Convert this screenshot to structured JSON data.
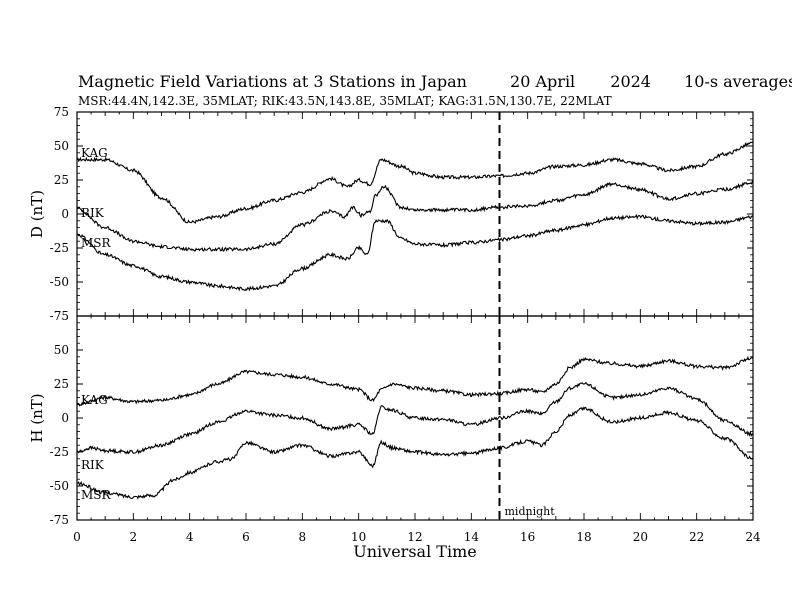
{
  "title": {
    "main": "Magnetic Field Variations at 3 Stations in Japan",
    "date": "20 April",
    "year": "2024",
    "averaging": "10-s averages"
  },
  "subtitle": "MSR:44.4N,142.3E, 35MLAT;  RIK:43.5N,143.8E, 35MLAT;  KAG:31.5N,130.7E, 22MLAT",
  "annotations": {
    "midnight": "midnight"
  },
  "chart_data": [
    {
      "type": "line",
      "panel": "D",
      "ylabel": "D (nT)",
      "xlim": [
        0,
        24
      ],
      "ylim": [
        -75,
        75
      ],
      "yticks": [
        -75,
        -50,
        -25,
        0,
        25,
        50,
        75
      ],
      "xticks": [
        0,
        2,
        4,
        6,
        8,
        10,
        12,
        14,
        16,
        18,
        20,
        22,
        24
      ],
      "vline_x": 15,
      "series": [
        {
          "name": "KAG",
          "x": [
            0,
            1,
            2,
            3,
            4,
            5,
            6,
            7,
            8,
            9,
            9.6,
            10,
            10.4,
            10.8,
            11.5,
            12,
            13,
            14,
            15,
            16,
            17,
            18,
            19,
            20,
            21,
            22,
            23,
            24
          ],
          "y": [
            40,
            40,
            32,
            12,
            -6,
            -2,
            4,
            10,
            16,
            26,
            20,
            25,
            22,
            40,
            35,
            30,
            27,
            27,
            28,
            30,
            35,
            36,
            40,
            37,
            32,
            35,
            44,
            52
          ]
        },
        {
          "name": "RIK",
          "x": [
            0,
            1,
            2,
            3,
            4,
            5,
            6,
            7,
            8,
            9,
            9.5,
            9.8,
            10.1,
            10.4,
            10.6,
            10.9,
            11.5,
            12,
            13,
            14,
            15,
            16,
            17,
            18,
            19,
            20,
            21,
            22,
            23,
            24
          ],
          "y": [
            4,
            -10,
            -20,
            -24,
            -26,
            -26,
            -26,
            -22,
            -8,
            2,
            -2,
            5,
            -1,
            2,
            14,
            20,
            5,
            3,
            3,
            3,
            5,
            6,
            10,
            14,
            22,
            18,
            11,
            15,
            18,
            23
          ]
        },
        {
          "name": "MSR",
          "x": [
            0,
            1,
            2,
            3,
            4,
            5,
            6,
            7,
            8,
            9,
            9.6,
            10,
            10.3,
            10.6,
            11,
            11.5,
            12,
            13,
            14,
            15,
            16,
            17,
            18,
            19,
            20,
            21,
            22,
            23,
            24
          ],
          "y": [
            -15,
            -30,
            -38,
            -46,
            -50,
            -53,
            -55,
            -53,
            -40,
            -30,
            -33,
            -25,
            -30,
            -5,
            -5,
            -18,
            -22,
            -23,
            -21,
            -19,
            -16,
            -12,
            -8,
            -3,
            -2,
            -5,
            -7,
            -6,
            -2
          ]
        }
      ]
    },
    {
      "type": "line",
      "panel": "H",
      "ylabel": "H (nT)",
      "xlabel": "Universal Time",
      "xlim": [
        0,
        24
      ],
      "ylim": [
        -75,
        75
      ],
      "yticks": [
        -75,
        -50,
        -25,
        0,
        25,
        50
      ],
      "xticks": [
        0,
        2,
        4,
        6,
        8,
        10,
        12,
        14,
        16,
        18,
        20,
        22,
        24
      ],
      "vline_x": 15,
      "series": [
        {
          "name": "KAG",
          "x": [
            0,
            1,
            2,
            3,
            4,
            5,
            6,
            7,
            8,
            9,
            10,
            10.5,
            10.8,
            11.2,
            12,
            13,
            14,
            15,
            16,
            16.5,
            17,
            17.5,
            18,
            19,
            20,
            21,
            22,
            23,
            24
          ],
          "y": [
            10,
            15,
            12,
            13,
            17,
            25,
            34,
            32,
            30,
            25,
            21,
            13,
            21,
            25,
            22,
            20,
            17,
            18,
            21,
            19,
            25,
            37,
            43,
            40,
            38,
            42,
            38,
            37,
            44
          ]
        },
        {
          "name": "RIK",
          "x": [
            0,
            0.5,
            1,
            2,
            3,
            4,
            5,
            6,
            7,
            8,
            9,
            10,
            10.5,
            10.8,
            11.1,
            12,
            13,
            14,
            15,
            16,
            16.5,
            17,
            17.5,
            18,
            19,
            20,
            21,
            22,
            23,
            24
          ],
          "y": [
            -25,
            -22,
            -24,
            -25,
            -20,
            -12,
            -3,
            5,
            2,
            0,
            -8,
            -5,
            -12,
            8,
            6,
            0,
            -1,
            -5,
            0,
            5,
            3,
            12,
            22,
            25,
            15,
            17,
            22,
            14,
            -2,
            -12
          ]
        },
        {
          "name": "MSR",
          "x": [
            0,
            1,
            2,
            2.7,
            3.5,
            4,
            5,
            5.5,
            6,
            7,
            8,
            9,
            10,
            10.5,
            10.8,
            11.2,
            12,
            13,
            14,
            15,
            16,
            16.5,
            17,
            17.5,
            18,
            19,
            20,
            21,
            22,
            23,
            24
          ],
          "y": [
            -48,
            -55,
            -58,
            -57,
            -45,
            -40,
            -32,
            -30,
            -18,
            -25,
            -20,
            -28,
            -25,
            -35,
            -18,
            -22,
            -25,
            -27,
            -26,
            -22,
            -17,
            -20,
            -10,
            2,
            7,
            -3,
            0,
            4,
            -2,
            -15,
            -30
          ]
        }
      ]
    }
  ]
}
